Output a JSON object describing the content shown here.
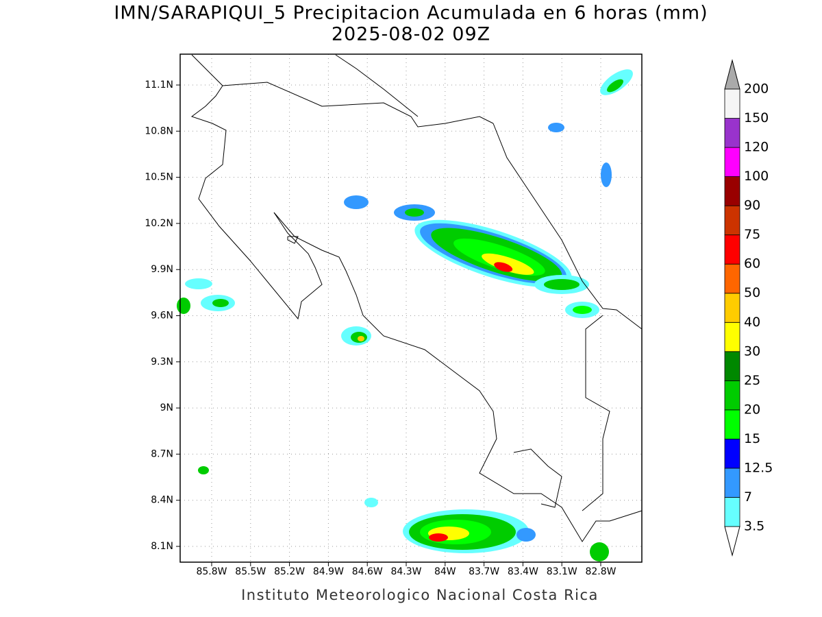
{
  "title": "IMN/SARAPIQUI_5 Precipitacion Acumulada en 6 horas (mm)",
  "subtitle": "2025-08-02 09Z",
  "lat_labels": [
    "11.1N",
    "10.8N",
    "10.5N",
    "10.2N",
    "9.9N",
    "9.6N",
    "9.3N",
    "9N",
    "8.7N",
    "8.4N",
    "8.1N"
  ],
  "lon_labels": [
    "85.8W",
    "85.5W",
    "85.2W",
    "84.9W",
    "84.6W",
    "84.3W",
    "84W",
    "83.7W",
    "83.4W",
    "83.1W",
    "82.8W"
  ],
  "colorbar": {
    "levels": [
      3.5,
      7,
      12.5,
      15,
      20,
      25,
      30,
      40,
      50,
      60,
      75,
      90,
      100,
      120,
      150,
      200
    ],
    "colors": [
      "#66ffff",
      "#3399ff",
      "#0000ff",
      "#00ff00",
      "#00cc00",
      "#008800",
      "#ffff00",
      "#ffcc00",
      "#ff6600",
      "#ff0000",
      "#cc3300",
      "#990000",
      "#ff00ff",
      "#9933cc",
      "#f5f5f5"
    ]
  },
  "footer": "Instituto Meteorologico Nacional Costa Rica"
}
